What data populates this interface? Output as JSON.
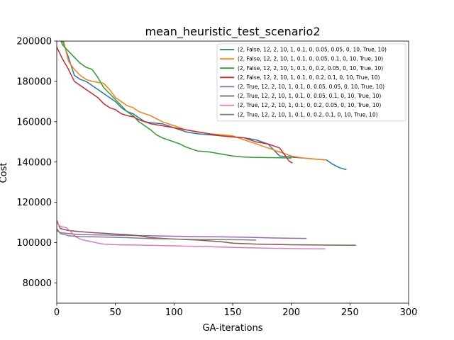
{
  "chart_data": {
    "type": "line",
    "title": "mean_heuristic_test_scenario2",
    "xlabel": "GA-iterations",
    "ylabel": "Cost",
    "xlim": [
      0,
      300
    ],
    "ylim": [
      70000,
      200000
    ],
    "xticks": [
      0,
      50,
      100,
      150,
      200,
      250,
      300
    ],
    "yticks": [
      80000,
      100000,
      120000,
      140000,
      160000,
      180000,
      200000
    ],
    "xtick_labels": [
      "0",
      "50",
      "100",
      "150",
      "200",
      "250",
      "300"
    ],
    "ytick_labels": [
      "80000",
      "100000",
      "120000",
      "140000",
      "160000",
      "180000",
      "200000"
    ],
    "grid": false,
    "legend": "upper right",
    "series": [
      {
        "name": "(2, False, 12, 2, 10, 1, 0.1, 0, 0.05, 0.05, 0, 10, True, 10)",
        "color": "#1f77b4",
        "points": [
          [
            0,
            209000
          ],
          [
            5,
            200000
          ],
          [
            10,
            192000
          ],
          [
            15,
            183000
          ],
          [
            20,
            181000
          ],
          [
            25,
            180000
          ],
          [
            30,
            178000
          ],
          [
            35,
            176000
          ],
          [
            40,
            174000
          ],
          [
            45,
            172000
          ],
          [
            50,
            170000
          ],
          [
            55,
            167000
          ],
          [
            60,
            165000
          ],
          [
            65,
            164000
          ],
          [
            70,
            162000
          ],
          [
            75,
            160000
          ],
          [
            80,
            159500
          ],
          [
            90,
            159000
          ],
          [
            100,
            157000
          ],
          [
            110,
            155000
          ],
          [
            120,
            154000
          ],
          [
            130,
            153500
          ],
          [
            140,
            153000
          ],
          [
            150,
            152500
          ],
          [
            160,
            152000
          ],
          [
            170,
            151000
          ],
          [
            175,
            150000
          ],
          [
            180,
            149000
          ],
          [
            185,
            146000
          ],
          [
            190,
            143000
          ],
          [
            200,
            142500
          ],
          [
            210,
            142000
          ],
          [
            220,
            141500
          ],
          [
            230,
            141000
          ],
          [
            235,
            139000
          ],
          [
            240,
            137500
          ],
          [
            245,
            136500
          ],
          [
            247,
            136300
          ]
        ]
      },
      {
        "name": "(2, False, 12, 2, 10, 1, 0.1, 0, 0.05, 0.1, 0, 10, True, 10)",
        "color": "#ff7f0e",
        "points": [
          [
            0,
            208000
          ],
          [
            5,
            202000
          ],
          [
            10,
            190000
          ],
          [
            15,
            186000
          ],
          [
            20,
            183000
          ],
          [
            25,
            181000
          ],
          [
            30,
            180000
          ],
          [
            35,
            179500
          ],
          [
            40,
            179000
          ],
          [
            45,
            176000
          ],
          [
            50,
            172000
          ],
          [
            55,
            170000
          ],
          [
            60,
            168000
          ],
          [
            65,
            167000
          ],
          [
            70,
            165000
          ],
          [
            75,
            164000
          ],
          [
            80,
            163000
          ],
          [
            90,
            160000
          ],
          [
            100,
            158000
          ],
          [
            110,
            156000
          ],
          [
            120,
            155000
          ],
          [
            130,
            154000
          ],
          [
            140,
            153500
          ],
          [
            150,
            153000
          ],
          [
            160,
            151000
          ],
          [
            170,
            149000
          ],
          [
            180,
            147000
          ],
          [
            190,
            145000
          ],
          [
            200,
            143000
          ],
          [
            210,
            142000
          ],
          [
            220,
            141500
          ],
          [
            230,
            141000
          ]
        ]
      },
      {
        "name": "(2, False, 12, 2, 10, 1, 0.1, 0, 0.2, 0.05, 0, 10, True, 10)",
        "color": "#2ca02c",
        "points": [
          [
            0,
            205000
          ],
          [
            5,
            198000
          ],
          [
            10,
            195000
          ],
          [
            15,
            192000
          ],
          [
            20,
            189000
          ],
          [
            25,
            187000
          ],
          [
            30,
            186000
          ],
          [
            35,
            182000
          ],
          [
            40,
            177000
          ],
          [
            45,
            174000
          ],
          [
            50,
            171000
          ],
          [
            55,
            168000
          ],
          [
            60,
            165000
          ],
          [
            65,
            163000
          ],
          [
            70,
            160000
          ],
          [
            75,
            158000
          ],
          [
            80,
            156000
          ],
          [
            85,
            153500
          ],
          [
            90,
            152000
          ],
          [
            95,
            151000
          ],
          [
            100,
            150000
          ],
          [
            105,
            149000
          ],
          [
            110,
            147500
          ],
          [
            115,
            146500
          ],
          [
            120,
            145500
          ],
          [
            130,
            145000
          ],
          [
            140,
            144000
          ],
          [
            150,
            143000
          ],
          [
            160,
            142500
          ],
          [
            170,
            142300
          ],
          [
            180,
            142200
          ],
          [
            190,
            142100
          ],
          [
            200,
            142000
          ]
        ]
      },
      {
        "name": "(2, False, 12, 2, 10, 1, 0.1, 0, 0.2, 0.1, 0, 10, True, 10)",
        "color": "#d62728",
        "points": [
          [
            0,
            197000
          ],
          [
            5,
            191000
          ],
          [
            10,
            186000
          ],
          [
            15,
            180000
          ],
          [
            20,
            178000
          ],
          [
            25,
            176000
          ],
          [
            30,
            174000
          ],
          [
            35,
            172000
          ],
          [
            40,
            169000
          ],
          [
            45,
            167000
          ],
          [
            50,
            166000
          ],
          [
            55,
            164000
          ],
          [
            60,
            163000
          ],
          [
            65,
            162500
          ],
          [
            70,
            161000
          ],
          [
            75,
            160000
          ],
          [
            80,
            159000
          ],
          [
            90,
            158000
          ],
          [
            100,
            157000
          ],
          [
            110,
            156000
          ],
          [
            120,
            155000
          ],
          [
            130,
            154000
          ],
          [
            140,
            153000
          ],
          [
            150,
            152500
          ],
          [
            160,
            152000
          ],
          [
            170,
            150000
          ],
          [
            180,
            149000
          ],
          [
            190,
            147000
          ],
          [
            195,
            143000
          ],
          [
            198,
            140500
          ],
          [
            201,
            139500
          ]
        ]
      },
      {
        "name": "(2, True, 12, 2, 10, 1, 0.1, 0, 0.05, 0.05, 0, 10, True, 10)",
        "color": "#9467bd",
        "points": [
          [
            0,
            106000
          ],
          [
            3,
            105000
          ],
          [
            10,
            104500
          ],
          [
            20,
            104000
          ],
          [
            40,
            103800
          ],
          [
            60,
            103600
          ],
          [
            80,
            103400
          ],
          [
            100,
            103200
          ],
          [
            120,
            103000
          ],
          [
            140,
            102900
          ],
          [
            160,
            102700
          ],
          [
            180,
            102400
          ],
          [
            200,
            102200
          ],
          [
            213,
            102100
          ]
        ]
      },
      {
        "name": "(2, True, 12, 2, 10, 1, 0.1, 0, 0.05, 0.1, 0, 10, True, 10)",
        "color": "#8c564b",
        "points": [
          [
            0,
            111000
          ],
          [
            3,
            107000
          ],
          [
            10,
            106000
          ],
          [
            20,
            105500
          ],
          [
            30,
            105000
          ],
          [
            40,
            104700
          ],
          [
            50,
            104300
          ],
          [
            60,
            104000
          ],
          [
            70,
            103500
          ],
          [
            80,
            102500
          ],
          [
            100,
            101800
          ],
          [
            120,
            101300
          ],
          [
            140,
            100500
          ],
          [
            150,
            99800
          ],
          [
            170,
            99300
          ],
          [
            200,
            99000
          ],
          [
            230,
            98800
          ],
          [
            255,
            98700
          ]
        ]
      },
      {
        "name": "(2, True, 12, 2, 10, 1, 0.1, 0, 0.2, 0.05, 0, 10, True, 10)",
        "color": "#e377c2",
        "points": [
          [
            0,
            110000
          ],
          [
            3,
            108000
          ],
          [
            8,
            107500
          ],
          [
            12,
            105500
          ],
          [
            16,
            103000
          ],
          [
            20,
            101800
          ],
          [
            25,
            101000
          ],
          [
            30,
            100500
          ],
          [
            35,
            99800
          ],
          [
            40,
            99300
          ],
          [
            50,
            99000
          ],
          [
            70,
            98800
          ],
          [
            90,
            98600
          ],
          [
            110,
            98300
          ],
          [
            130,
            98000
          ],
          [
            150,
            97700
          ],
          [
            170,
            97400
          ],
          [
            190,
            97200
          ],
          [
            210,
            97000
          ],
          [
            229,
            96900
          ]
        ]
      },
      {
        "name": "(2, True, 12, 2, 10, 1, 0.1, 0, 0.2, 0.1, 0, 10, True, 10)",
        "color": "#7f7f7f",
        "points": [
          [
            0,
            107000
          ],
          [
            3,
            104500
          ],
          [
            10,
            103500
          ],
          [
            20,
            103000
          ],
          [
            40,
            102800
          ],
          [
            60,
            102500
          ],
          [
            80,
            102000
          ],
          [
            100,
            101800
          ],
          [
            120,
            101600
          ],
          [
            140,
            101500
          ],
          [
            160,
            101400
          ],
          [
            170,
            101300
          ]
        ]
      }
    ]
  }
}
